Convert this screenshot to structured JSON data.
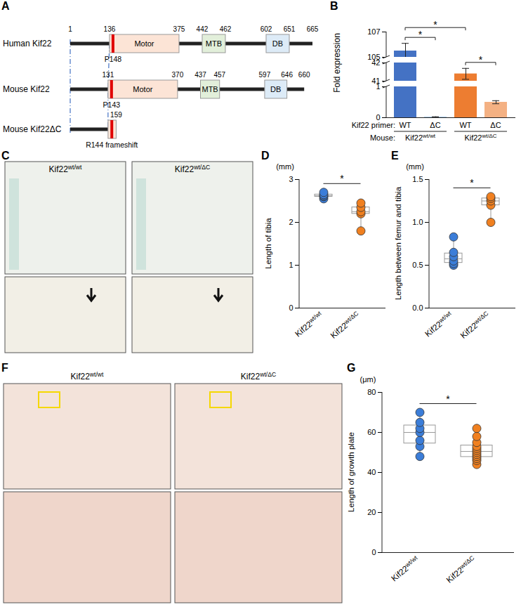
{
  "diagram": {
    "panel": "A",
    "proteins": [
      {
        "name": "Human Kif22",
        "length": 665,
        "positions": [
          1,
          136,
          375,
          442,
          462,
          602,
          651,
          665
        ],
        "domains": [
          {
            "name": "Motor",
            "start": 136,
            "end": 375,
            "color": "#FCE4D6"
          },
          {
            "name": "MTB",
            "start": 442,
            "end": 462,
            "color": "#E2EFDA"
          },
          {
            "name": "DB",
            "start": 602,
            "end": 651,
            "color": "#DDEBF7"
          }
        ],
        "marker": {
          "position": 148,
          "label": "P148"
        }
      },
      {
        "name": "Mouse Kif22",
        "length": 660,
        "positions": [
          131,
          370,
          437,
          457,
          597,
          646,
          660
        ],
        "domains": [
          {
            "name": "Motor",
            "start": 131,
            "end": 370,
            "color": "#FCE4D6"
          },
          {
            "name": "MTB",
            "start": 437,
            "end": 457,
            "color": "#E2EFDA"
          },
          {
            "name": "DB",
            "start": 597,
            "end": 646,
            "color": "#DDEBF7"
          }
        ],
        "marker": {
          "position": 143,
          "label": "P143"
        }
      },
      {
        "name": "Mouse Kif22ΔC",
        "length": 159,
        "positions": [
          159
        ],
        "domains": [
          {
            "name": null,
            "start": 131,
            "end": 159,
            "color": "#FCE4D6"
          }
        ],
        "marker": {
          "position": 144,
          "label": "R144 frameshift"
        }
      }
    ]
  },
  "chart_data": [
    {
      "panel": "B",
      "type": "bar",
      "y_label": "Fold expression",
      "categories": [
        "WT",
        "ΔC",
        "WT",
        "ΔC"
      ],
      "category_title": "Kif22 primer:",
      "groups": [
        {
          "text": "Kif22wt/wt",
          "sup": "wt/wt",
          "span": 2
        },
        {
          "text": "Kif22wt/ΔC",
          "sup": "wt/ΔC",
          "span": 2
        }
      ],
      "group_title": "Mouse:",
      "values": [
        105.5,
        0.02,
        41.4,
        0.5
      ],
      "errors": [
        0.6,
        0.01,
        0.3,
        0.05
      ],
      "colors": [
        "#4472C4",
        "#9DC3E6",
        "#ED7D31",
        "#F4B183"
      ],
      "y_segments": [
        {
          "ylim": [
            0,
            1
          ],
          "yticks": [
            0,
            1
          ]
        },
        {
          "ylim": [
            41,
            42
          ],
          "yticks": [
            41,
            42
          ]
        },
        {
          "ylim": [
            105,
            107
          ],
          "yticks": [
            105,
            107
          ]
        }
      ],
      "comparisons": [
        {
          "between": [
            0,
            1
          ],
          "label": "*"
        },
        {
          "between": [
            0,
            2
          ],
          "label": "*"
        },
        {
          "between": [
            2,
            3
          ],
          "label": "*"
        }
      ]
    },
    {
      "panel": "D",
      "type": "box",
      "y_label": "Length of tibia",
      "y_unit": "(mm)",
      "categories": [
        "Kif22wt/wt",
        "Kif22wt/ΔC"
      ],
      "category_sup": [
        "wt/wt",
        "wt/ΔC"
      ],
      "values": [
        [
          2.55,
          2.6,
          2.62,
          2.65,
          2.7
        ],
        [
          1.8,
          2.2,
          2.25,
          2.35,
          2.45
        ]
      ],
      "colors": [
        "#3B7DD8",
        "#F08020"
      ],
      "ylim": [
        0,
        3
      ],
      "yticks": [
        0,
        1,
        2,
        3
      ],
      "comparisons": [
        {
          "between": [
            0,
            1
          ],
          "label": "*"
        }
      ]
    },
    {
      "panel": "E",
      "type": "box",
      "y_label": "Length between femur and tibia",
      "y_unit": "(mm)",
      "categories": [
        "Kif22wt/wt",
        "Kif22wt/ΔC"
      ],
      "category_sup": [
        "wt/wt",
        "wt/ΔC"
      ],
      "values": [
        [
          0.5,
          0.52,
          0.55,
          0.6,
          0.65,
          0.83
        ],
        [
          1.0,
          1.2,
          1.25,
          1.28,
          1.3
        ]
      ],
      "colors": [
        "#3B7DD8",
        "#F08020"
      ],
      "ylim": [
        0,
        1.5
      ],
      "yticks": [
        {
          "value": 0,
          "label": "0.0"
        },
        0.5,
        {
          "value": 1,
          "label": "1.0"
        },
        1.5
      ],
      "comparisons": [
        {
          "between": [
            0,
            1
          ],
          "label": "*"
        }
      ]
    },
    {
      "panel": "G",
      "type": "box",
      "y_label": "Length of growth plate",
      "y_unit": "(μm)",
      "categories": [
        "Kif22wt/wt",
        "Kif22wt/ΔC"
      ],
      "category_sup": [
        "wt/wt",
        "wt/ΔC"
      ],
      "values": [
        [
          48,
          53,
          56,
          60,
          62,
          65,
          70
        ],
        [
          44,
          46,
          47,
          48,
          49,
          50,
          51,
          52,
          53,
          55,
          58,
          62
        ]
      ],
      "colors": [
        "#3B7DD8",
        "#F08020"
      ],
      "ylim": [
        0,
        80
      ],
      "yticks": [
        0,
        20,
        40,
        60,
        80
      ],
      "comparisons": [
        {
          "between": [
            0,
            1
          ],
          "label": "*"
        }
      ]
    }
  ],
  "images": [
    {
      "panel": "C",
      "captions": [
        {
          "text": "Kif22wt/wt",
          "sup": "wt/wt"
        },
        {
          "text": "Kif22wt/ΔC",
          "sup": "wt/ΔC"
        }
      ]
    },
    {
      "panel": "F",
      "captions": [
        {
          "text": "Kif22wt/wt",
          "sup": "wt/wt"
        },
        {
          "text": "Kif22wt/ΔC",
          "sup": "wt/ΔC"
        }
      ]
    }
  ]
}
